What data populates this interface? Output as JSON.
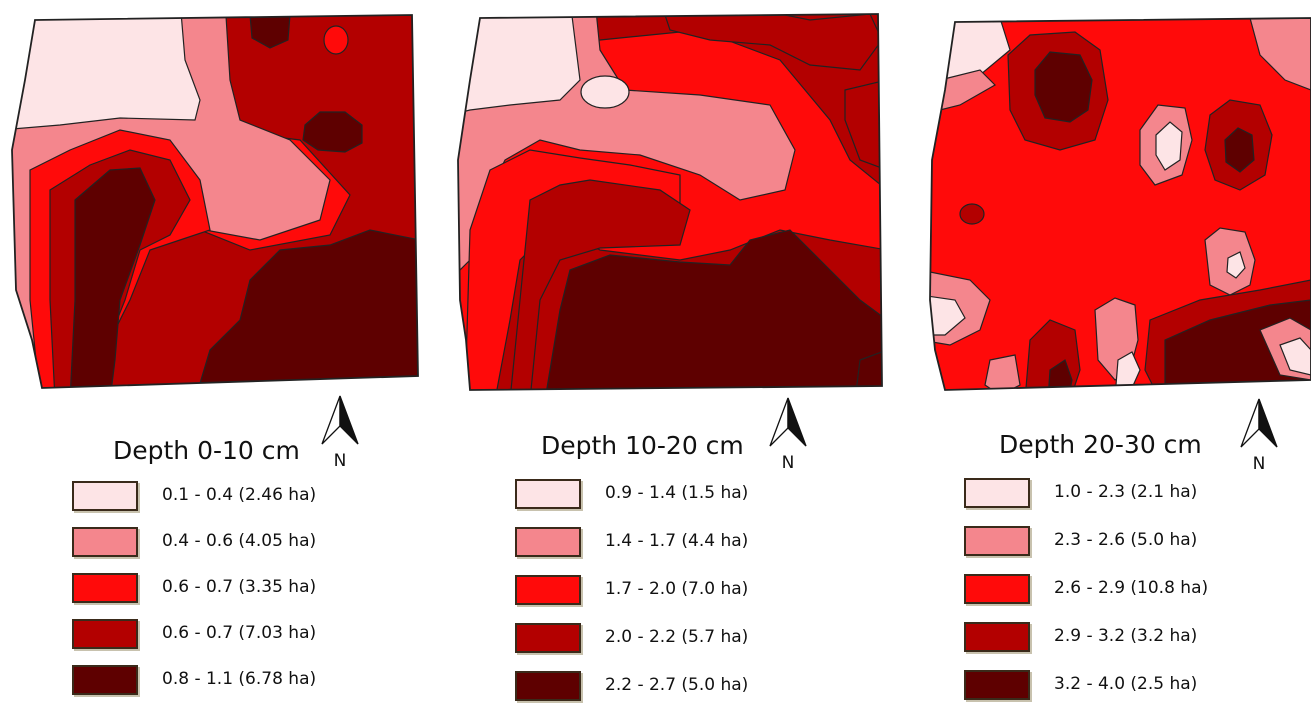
{
  "colors": {
    "class1": "#fde4e6",
    "class2": "#f4868d",
    "class3": "#ff0a0a",
    "class4": "#b30000",
    "class5": "#5e0000",
    "outline": "#222222"
  },
  "panels": [
    {
      "title": "Depth 0-10 cm",
      "north_label": "N",
      "legend": [
        {
          "label": "0.1 - 0.4 (2.46 ha)",
          "color": "#fde4e6"
        },
        {
          "label": "0.4 - 0.6 (4.05 ha)",
          "color": "#f4868d"
        },
        {
          "label": "0.6 - 0.7 (3.35 ha)",
          "color": "#ff0a0a"
        },
        {
          "label": "0.6 - 0.7 (7.03 ha)",
          "color": "#b30000"
        },
        {
          "label": "0.8 - 1.1 (6.78 ha)",
          "color": "#5e0000"
        }
      ]
    },
    {
      "title": "Depth 10-20 cm",
      "north_label": "N",
      "legend": [
        {
          "label": "0.9 - 1.4 (1.5 ha)",
          "color": "#fde4e6"
        },
        {
          "label": "1.4 - 1.7 (4.4 ha)",
          "color": "#f4868d"
        },
        {
          "label": "1.7 - 2.0 (7.0 ha)",
          "color": "#ff0a0a"
        },
        {
          "label": "2.0 - 2.2 (5.7 ha)",
          "color": "#b30000"
        },
        {
          "label": "2.2 - 2.7 (5.0 ha)",
          "color": "#5e0000"
        }
      ]
    },
    {
      "title": "Depth 20-30 cm",
      "north_label": "N",
      "legend": [
        {
          "label": "1.0 - 2.3 (2.1 ha)",
          "color": "#fde4e6"
        },
        {
          "label": "2.3 - 2.6 (5.0 ha)",
          "color": "#f4868d"
        },
        {
          "label": "2.6 - 2.9 (10.8 ha)",
          "color": "#ff0a0a"
        },
        {
          "label": "2.9 - 3.2 (3.2 ha)",
          "color": "#b30000"
        },
        {
          "label": "3.2 - 4.0 (2.5 ha)",
          "color": "#5e0000"
        }
      ]
    }
  ]
}
